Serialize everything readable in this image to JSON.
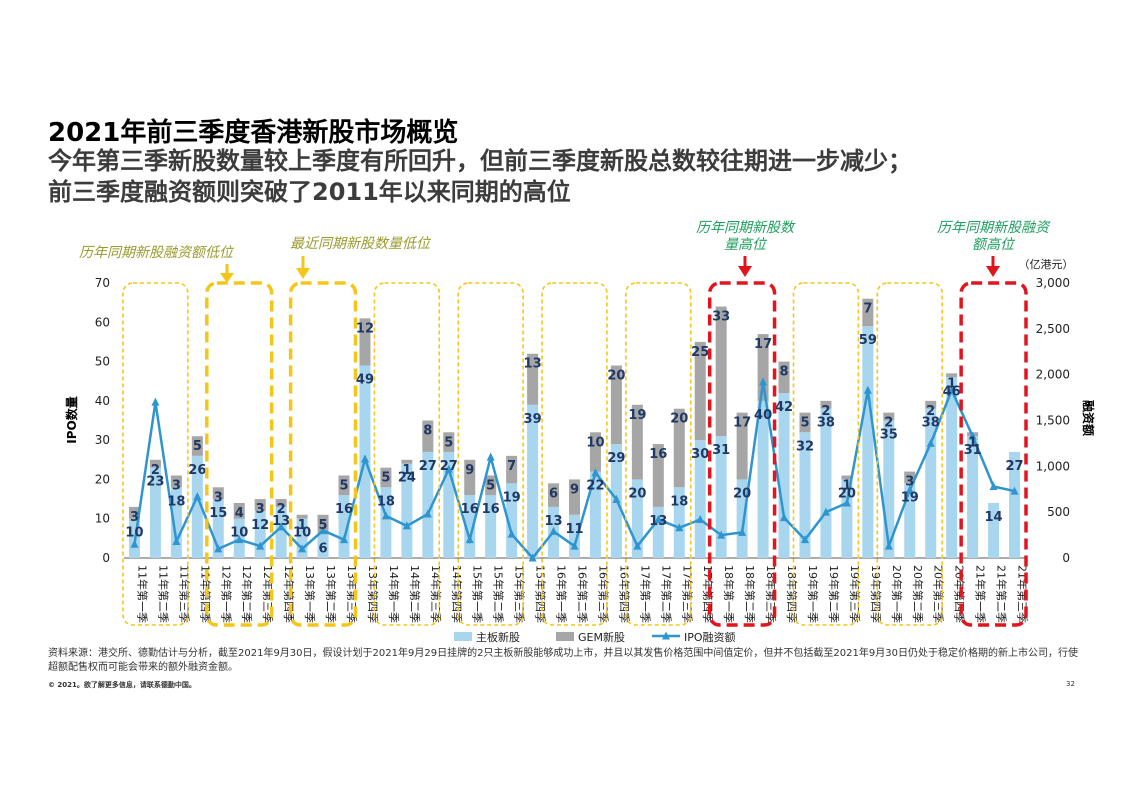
{
  "title": "2021年前三季度香港新股市场概览",
  "subtitle_lines": [
    "今年第三季新股数量较上季度有所回升，但前三季度新股总数较往期进一步减少；",
    "前三季度融资额则突破了2011年以来同期的高位"
  ],
  "source": "资料来源：港交所、德勤估计与分析，截至2021年9月30日，假设计划于2021年9月29日挂牌的2只主板新股能够成功上市，并且以其发售价格范围中间值定价，但并不包括截至2021年9月30日仍处于稳定价格期的新上市公司，行使超额配售权而可能会带来的额外融资金额。",
  "copyright": "© 2021。欲了解更多信息，请联系德勤中国。",
  "page_number": "32",
  "colors": {
    "main": "#a9d6ef",
    "gem": "#a6a6a6",
    "line": "#2e95cf",
    "label": "#1f3864",
    "yellow": "#f5c61a",
    "red": "#e2141e",
    "ann_yellow": "#9a9a2e",
    "ann_green": "#1e9e5e"
  },
  "annotations": {
    "low_funds": "历年同期新股融资额低位",
    "low_count": "最近同期新股数量低位",
    "high_count": "历年同期新股数量高位",
    "high_funds": "历年同期新股融资额高位"
  },
  "chart_data": {
    "type": "bar",
    "stacked": true,
    "categories": [
      "11年第一季",
      "11年第二季",
      "11年第三季",
      "11年第四季",
      "12年第一季",
      "12年第二季",
      "12年第三季",
      "12年第四季",
      "13年第一季",
      "13年第二季",
      "13年第三季",
      "13年第四季",
      "14年第一季",
      "14年第二季",
      "14年第三季",
      "14年第四季",
      "15年第一季",
      "15年第二季",
      "15年第三季",
      "15年第四季",
      "16年第一季",
      "16年第二季",
      "16年第三季",
      "16年第四季",
      "17年第一季",
      "17年第二季",
      "17年第三季",
      "17年第四季",
      "18年第一季",
      "18年第二季",
      "18年第三季",
      "18年第四季",
      "19年第一季",
      "19年第二季",
      "19年第三季",
      "19年第四季",
      "20年第一季",
      "20年第二季",
      "20年第三季",
      "20年第四季",
      "21年第一季",
      "21年第二季",
      "21年第三季"
    ],
    "series": [
      {
        "name": "主板新股",
        "kind": "bar",
        "axis": "left",
        "values": [
          10,
          23,
          18,
          26,
          15,
          10,
          12,
          13,
          10,
          6,
          16,
          49,
          18,
          24,
          27,
          27,
          16,
          16,
          19,
          39,
          13,
          11,
          22,
          29,
          20,
          13,
          18,
          30,
          31,
          20,
          40,
          42,
          32,
          38,
          20,
          59,
          35,
          19,
          38,
          46,
          31,
          14,
          27
        ]
      },
      {
        "name": "GEM新股",
        "kind": "bar",
        "axis": "left",
        "values": [
          3,
          2,
          3,
          5,
          3,
          4,
          3,
          2,
          1,
          5,
          5,
          12,
          5,
          1,
          8,
          5,
          9,
          5,
          7,
          13,
          6,
          9,
          10,
          20,
          19,
          16,
          20,
          25,
          33,
          17,
          17,
          8,
          5,
          2,
          1,
          7,
          2,
          3,
          2,
          1,
          1,
          0,
          0
        ]
      },
      {
        "name": "IPO融资额",
        "kind": "line",
        "axis": "right",
        "values": [
          150,
          1700,
          180,
          670,
          100,
          200,
          130,
          340,
          100,
          300,
          200,
          1080,
          460,
          350,
          480,
          970,
          200,
          1100,
          260,
          0,
          290,
          130,
          930,
          640,
          130,
          420,
          330,
          420,
          250,
          280,
          1920,
          440,
          200,
          500,
          600,
          1830,
          130,
          740,
          1250,
          1830,
          1330,
          780,
          730
        ]
      }
    ],
    "ylabel_left": "IPO数量",
    "ylabel_right": "融资额",
    "right_unit": "（亿港元）",
    "ylim_left": [
      0,
      70
    ],
    "ylim_right": [
      0,
      3000
    ],
    "yticks_left": [
      0,
      10,
      20,
      30,
      40,
      50,
      60,
      70
    ],
    "yticks_right": [
      "0",
      "500",
      "1,000",
      "1,500",
      "2,000",
      "2,500",
      "3,000"
    ],
    "legend": [
      "主板新股",
      "GEM新股",
      "IPO融资额"
    ],
    "highlight_groups": [
      {
        "style": "yellow-dot",
        "start": 0,
        "end": 2
      },
      {
        "style": "yellow-dash",
        "start": 4,
        "end": 6
      },
      {
        "style": "yellow-dash",
        "start": 8,
        "end": 10
      },
      {
        "style": "yellow-dot",
        "start": 12,
        "end": 14
      },
      {
        "style": "yellow-dot",
        "start": 16,
        "end": 18
      },
      {
        "style": "yellow-dot",
        "start": 20,
        "end": 22
      },
      {
        "style": "yellow-dot",
        "start": 24,
        "end": 26
      },
      {
        "style": "red-dash",
        "start": 28,
        "end": 30
      },
      {
        "style": "yellow-dot",
        "start": 32,
        "end": 34
      },
      {
        "style": "yellow-dot",
        "start": 36,
        "end": 38
      },
      {
        "style": "red-dash",
        "start": 40,
        "end": 42
      }
    ]
  }
}
